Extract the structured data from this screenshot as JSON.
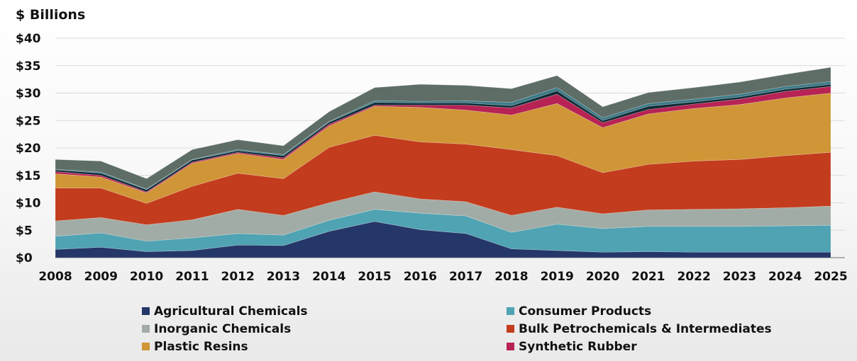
{
  "chart_data": {
    "type": "area",
    "stacked": true,
    "ylabel": "$ Billions",
    "xlabel": "",
    "ylim": [
      0,
      40
    ],
    "yticks": [
      "$0",
      "$5",
      "$10",
      "$15",
      "$20",
      "$25",
      "$30",
      "$35",
      "$40"
    ],
    "ytick_values": [
      0,
      5,
      10,
      15,
      20,
      25,
      30,
      35,
      40
    ],
    "grid": true,
    "legend_position": "bottom",
    "categories": [
      "2008",
      "2009",
      "2010",
      "2011",
      "2012",
      "2013",
      "2014",
      "2015",
      "2016",
      "2017",
      "2018",
      "2019",
      "2020",
      "2021",
      "2022",
      "2023",
      "2024",
      "2025"
    ],
    "series": [
      {
        "name": "Agricultural Chemicals",
        "color": "#253668",
        "in_legend": true,
        "values": [
          1.5,
          1.9,
          1.1,
          1.3,
          2.3,
          2.2,
          4.8,
          6.6,
          5.1,
          4.4,
          1.6,
          1.3,
          1.0,
          1.1,
          1.0,
          1.0,
          1.0,
          1.0
        ]
      },
      {
        "name": "Consumer Products",
        "color": "#4FA3B3",
        "in_legend": true,
        "values": [
          2.4,
          2.6,
          1.9,
          2.3,
          2.1,
          1.9,
          2.0,
          2.2,
          3.0,
          3.2,
          3.0,
          4.8,
          4.3,
          4.6,
          4.7,
          4.7,
          4.8,
          4.9
        ]
      },
      {
        "name": "Inorganic Chemicals",
        "color": "#A2ACA6",
        "in_legend": true,
        "values": [
          2.8,
          2.8,
          3.0,
          3.3,
          4.4,
          3.6,
          3.2,
          3.2,
          2.6,
          2.6,
          3.1,
          3.1,
          2.7,
          3.0,
          3.1,
          3.2,
          3.3,
          3.5
        ]
      },
      {
        "name": "Bulk Petrochemicals & Intermediates",
        "color": "#C33C1D",
        "in_legend": true,
        "values": [
          6.0,
          5.4,
          3.9,
          6.1,
          6.6,
          6.7,
          10.1,
          10.3,
          10.4,
          10.5,
          12.0,
          9.4,
          7.5,
          8.3,
          8.8,
          9.0,
          9.5,
          9.8
        ]
      },
      {
        "name": "Plastic Resins",
        "color": "#D09536",
        "in_legend": true,
        "values": [
          2.6,
          2.0,
          1.9,
          4.2,
          3.6,
          3.5,
          3.9,
          5.3,
          6.3,
          6.2,
          6.3,
          9.5,
          8.2,
          9.2,
          9.6,
          10.0,
          10.5,
          10.8
        ]
      },
      {
        "name": "Synthetic Rubber",
        "color": "#B72354",
        "in_legend": true,
        "values": [
          0.4,
          0.3,
          0.2,
          0.2,
          0.2,
          0.3,
          0.3,
          0.2,
          0.4,
          0.9,
          1.3,
          1.7,
          0.9,
          0.8,
          0.8,
          1.0,
          1.2,
          1.2
        ]
      },
      {
        "name": "",
        "color": "#102A33",
        "in_legend": false,
        "values": [
          0.3,
          0.4,
          0.4,
          0.4,
          0.3,
          0.4,
          0.4,
          0.5,
          0.4,
          0.4,
          0.4,
          0.6,
          0.4,
          0.6,
          0.4,
          0.4,
          0.4,
          0.4
        ]
      },
      {
        "name": "",
        "color": "#3D7A88",
        "in_legend": false,
        "values": [
          0.1,
          0.2,
          0.1,
          0.1,
          0.2,
          0.2,
          0.1,
          0.3,
          0.3,
          0.4,
          0.6,
          0.6,
          0.5,
          0.5,
          0.5,
          0.5,
          0.5,
          0.5
        ]
      },
      {
        "name": "",
        "color": "#5E6E67",
        "in_legend": false,
        "values": [
          1.8,
          2.0,
          1.9,
          1.8,
          1.8,
          1.6,
          1.8,
          2.4,
          3.1,
          2.8,
          2.5,
          2.2,
          2.0,
          2.0,
          2.1,
          2.2,
          2.2,
          2.6
        ]
      }
    ]
  }
}
